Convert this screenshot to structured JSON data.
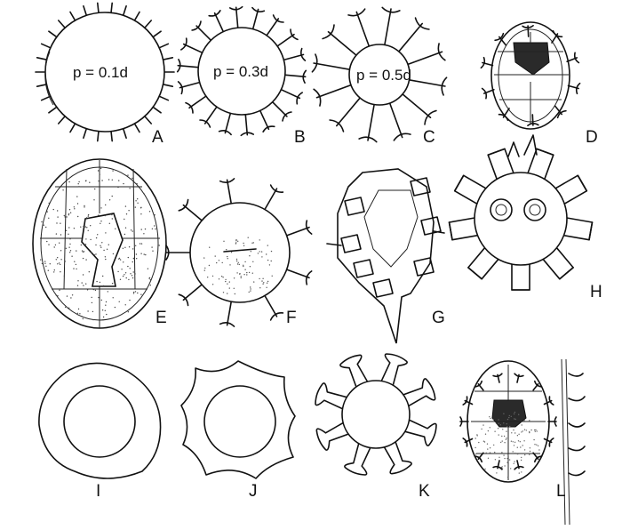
{
  "figures": [
    {
      "label": "A",
      "annotation": "p = 0.1d"
    },
    {
      "label": "B",
      "annotation": "p = 0.3d"
    },
    {
      "label": "C",
      "annotation": "p = 0.5d"
    },
    {
      "label": "D",
      "annotation": ""
    },
    {
      "label": "E",
      "annotation": ""
    },
    {
      "label": "F",
      "annotation": ""
    },
    {
      "label": "G",
      "annotation": ""
    },
    {
      "label": "H",
      "annotation": ""
    },
    {
      "label": "I",
      "annotation": ""
    },
    {
      "label": "J",
      "annotation": ""
    },
    {
      "label": "K",
      "annotation": ""
    },
    {
      "label": "L",
      "annotation": ""
    }
  ]
}
